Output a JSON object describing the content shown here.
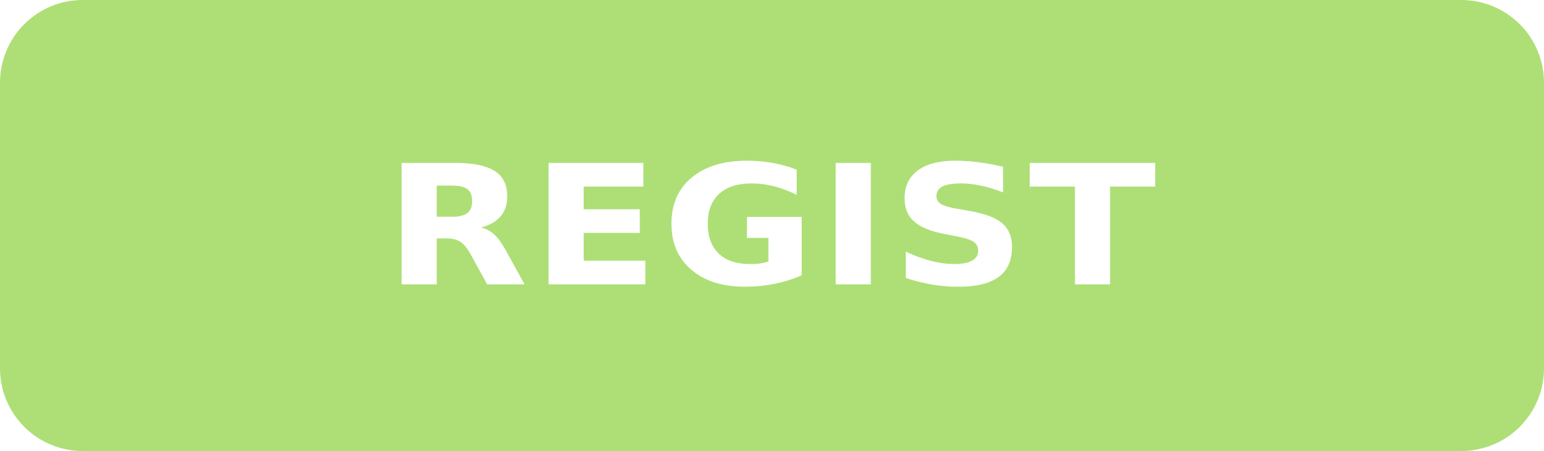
{
  "button": {
    "label": "REGIST",
    "background": "#ADDF76",
    "text_color": "#FFFFFF"
  }
}
